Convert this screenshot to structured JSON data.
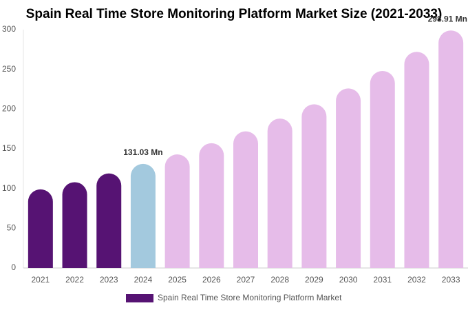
{
  "chart_data": {
    "type": "bar",
    "title": "Spain Real Time Store Monitoring Platform Market Size (2021-2033)",
    "categories": [
      "2021",
      "2022",
      "2023",
      "2024",
      "2025",
      "2026",
      "2027",
      "2028",
      "2029",
      "2030",
      "2031",
      "2032",
      "2033"
    ],
    "series": [
      {
        "name": "Spain Real Time Store Monitoring Platform Market",
        "color": "#561373",
        "values": [
          99,
          108,
          119,
          131.03,
          143,
          157,
          172,
          188,
          206,
          226,
          248,
          272,
          298.91
        ],
        "value_labels": [
          null,
          null,
          null,
          "131.03 Mn",
          null,
          null,
          null,
          null,
          null,
          null,
          null,
          null,
          "298.91 Mn"
        ],
        "colors": [
          "#561373",
          "#561373",
          "#561373",
          "#a3c9de",
          "#e6bce9",
          "#e6bce9",
          "#e6bce9",
          "#e6bce9",
          "#e6bce9",
          "#e6bce9",
          "#e6bce9",
          "#e6bce9",
          "#e6bce9"
        ]
      }
    ],
    "ylim": [
      0,
      300
    ],
    "yticks": [
      0,
      50,
      100,
      150,
      200,
      250,
      300
    ],
    "grid": false
  }
}
